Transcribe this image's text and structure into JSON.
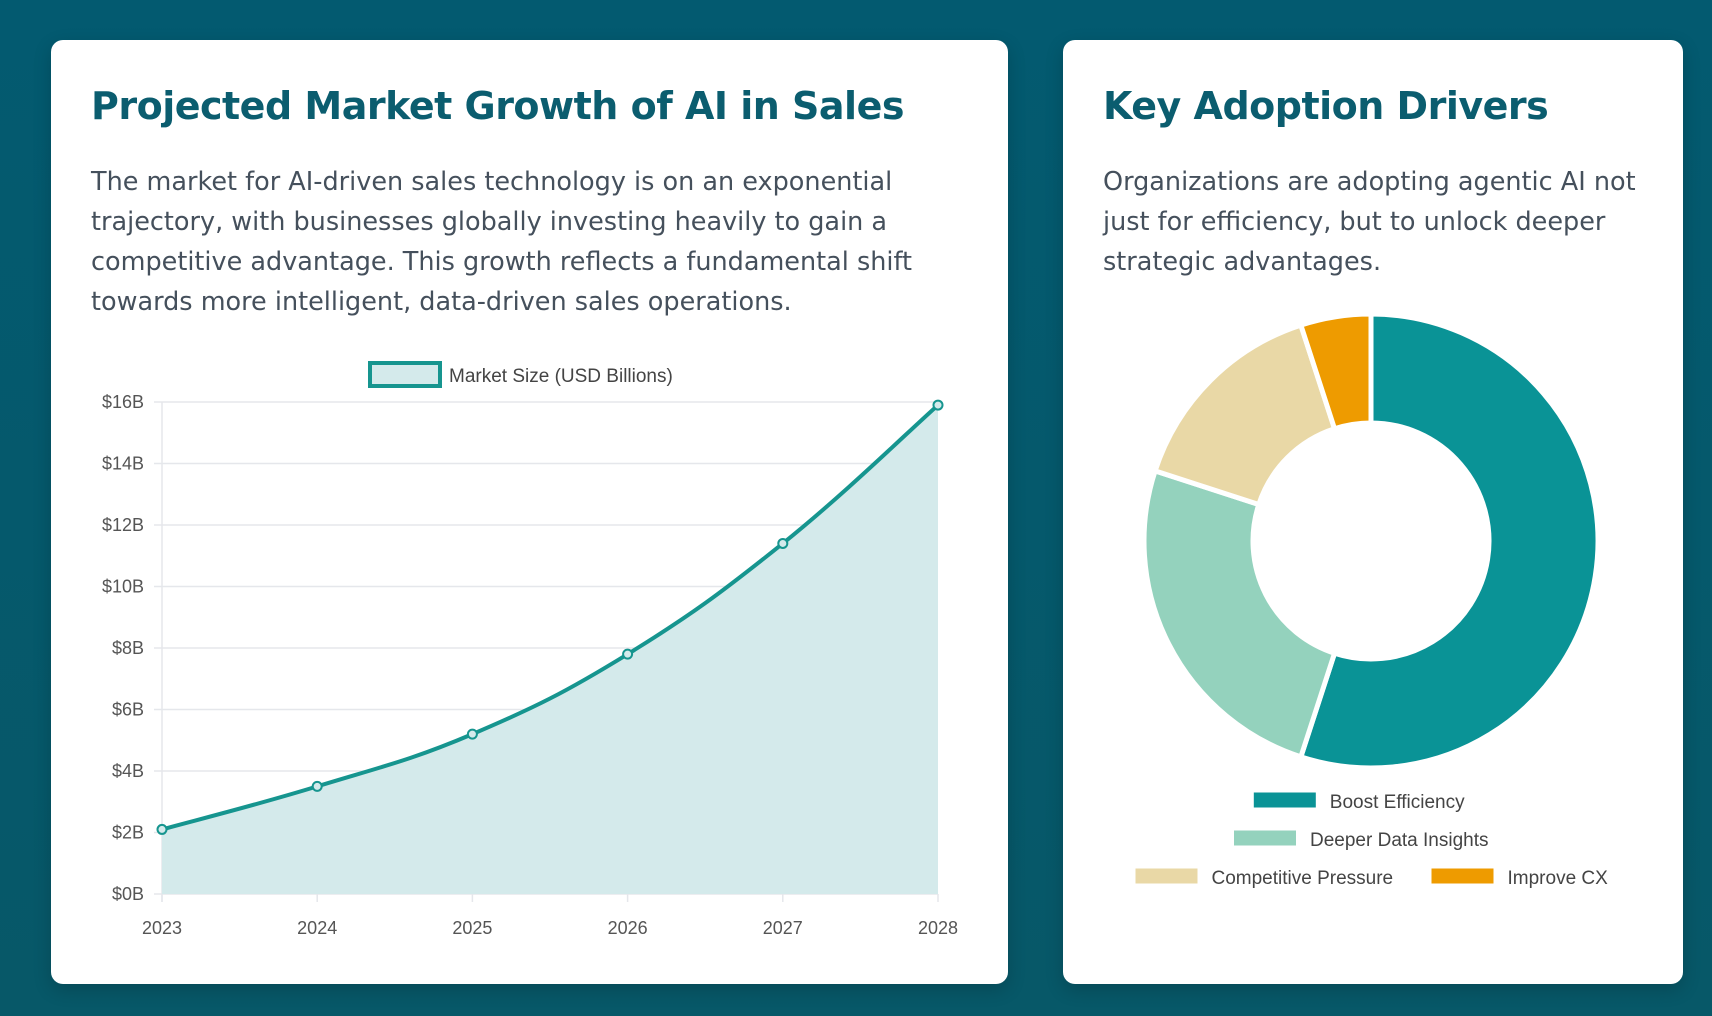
{
  "growth": {
    "title": "Projected Market Growth of AI in Sales",
    "description": "The market for AI-driven sales technology is on an exponential trajectory, with businesses globally investing heavily to gain a competitive advantage. This growth reflects a fundamental shift towards more intelligent, data-driven sales operations."
  },
  "drivers": {
    "title": "Key Adoption Drivers",
    "description": "Organizations are adopting agentic AI not just for efficiency, but to unlock deeper strategic advantages."
  },
  "colors": {
    "line": "#16958f",
    "area_fill": "#d4eaeb",
    "title": "#0b5d6f",
    "grid": "#e5e7eb"
  },
  "chart_data": [
    {
      "type": "area",
      "categories": [
        "2023",
        "2024",
        "2025",
        "2026",
        "2027",
        "2028"
      ],
      "series": [
        {
          "name": "Market Size (USD Billions)",
          "values": [
            2.1,
            3.5,
            5.2,
            7.8,
            11.4,
            15.9
          ]
        }
      ],
      "ylim": [
        0,
        16
      ],
      "yticks": [
        0,
        2,
        4,
        6,
        8,
        10,
        12,
        14,
        16
      ],
      "ytick_labels": [
        "$0B",
        "$2B",
        "$4B",
        "$6B",
        "$8B",
        "$10B",
        "$12B",
        "$14B",
        "$16B"
      ],
      "grid": true,
      "legend_position": "top"
    },
    {
      "type": "pie",
      "variant": "doughnut",
      "labels": [
        "Boost Efficiency",
        "Deeper Data Insights",
        "Competitive Pressure",
        "Improve CX"
      ],
      "values": [
        55,
        25,
        15,
        5
      ],
      "colors": [
        "#0a9396",
        "#94d2bd",
        "#e9d8a6",
        "#ee9b00"
      ],
      "legend_position": "bottom"
    }
  ]
}
